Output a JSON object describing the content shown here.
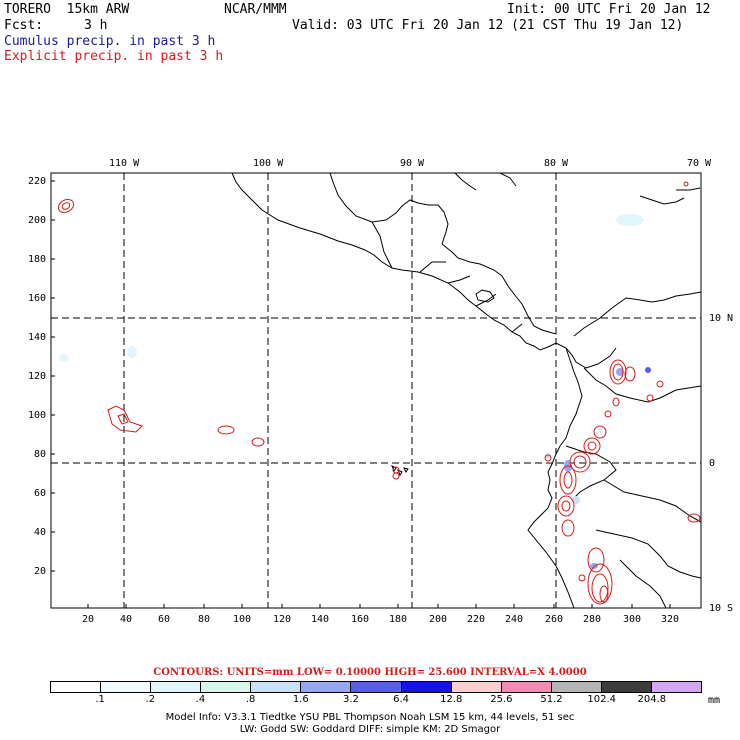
{
  "header": {
    "model": "TORERO  15km ARW",
    "center": "NCAR/MMM",
    "init": "Init: 00 UTC Fri 20 Jan 12",
    "fcst_label": "Fcst:",
    "fcst_value": "3 h",
    "valid": "Valid: 03 UTC Fri 20 Jan 12 (21 CST Thu 19 Jan 12)",
    "field1": "Cumulus precip. in past 3 h",
    "field2": "Explicit precip. in past 3 h"
  },
  "colors": {
    "cumulus": "#1a1a9a",
    "explicit": "#d41c1c",
    "grid_dash": "#000000"
  },
  "map": {
    "top_lon_labels": [
      "110 W",
      "100 W",
      "90 W",
      "80 W",
      "70 W"
    ],
    "right_lat_labels": [
      "10 N",
      "0",
      "10 S"
    ],
    "y_ticks": [
      "220",
      "200",
      "180",
      "160",
      "140",
      "120",
      "100",
      "80",
      "60",
      "40",
      "20"
    ],
    "x_ticks": [
      "20",
      "40",
      "60",
      "80",
      "100",
      "120",
      "140",
      "160",
      "180",
      "200",
      "220",
      "240",
      "260",
      "280",
      "300",
      "320"
    ]
  },
  "legend": {
    "contours_text": "CONTOURS:  UNITS=mm  LOW= 0.10000     HIGH=  25.600     INTERVAL=X  4.0000",
    "unit": "mm",
    "labels": [
      ".1",
      ".2",
      ".4",
      ".8",
      "1.6",
      "3.2",
      "6.4",
      "12.8",
      "25.6",
      "51.2",
      "102.4",
      "204.8"
    ],
    "fill_colors": [
      "#ffffff",
      "#f2fbff",
      "#e1f6fb",
      "#d6f7e9",
      "#c9e1f7",
      "#97a6f2",
      "#5a5aee",
      "#1515e0",
      "#fcd0d0",
      "#f28cb4",
      "#b4b4b4",
      "#3c3c3c",
      "#d4a6f6"
    ]
  },
  "footer": {
    "line1": "Model Info: V3.3.1     Tiedtke YSU PBL  Thompson      Noah LSM  15 km,   44 levels,   51 sec",
    "line2": "LW: Godd SW: Goddard DIFF: simple KM: 2D Smagor"
  }
}
